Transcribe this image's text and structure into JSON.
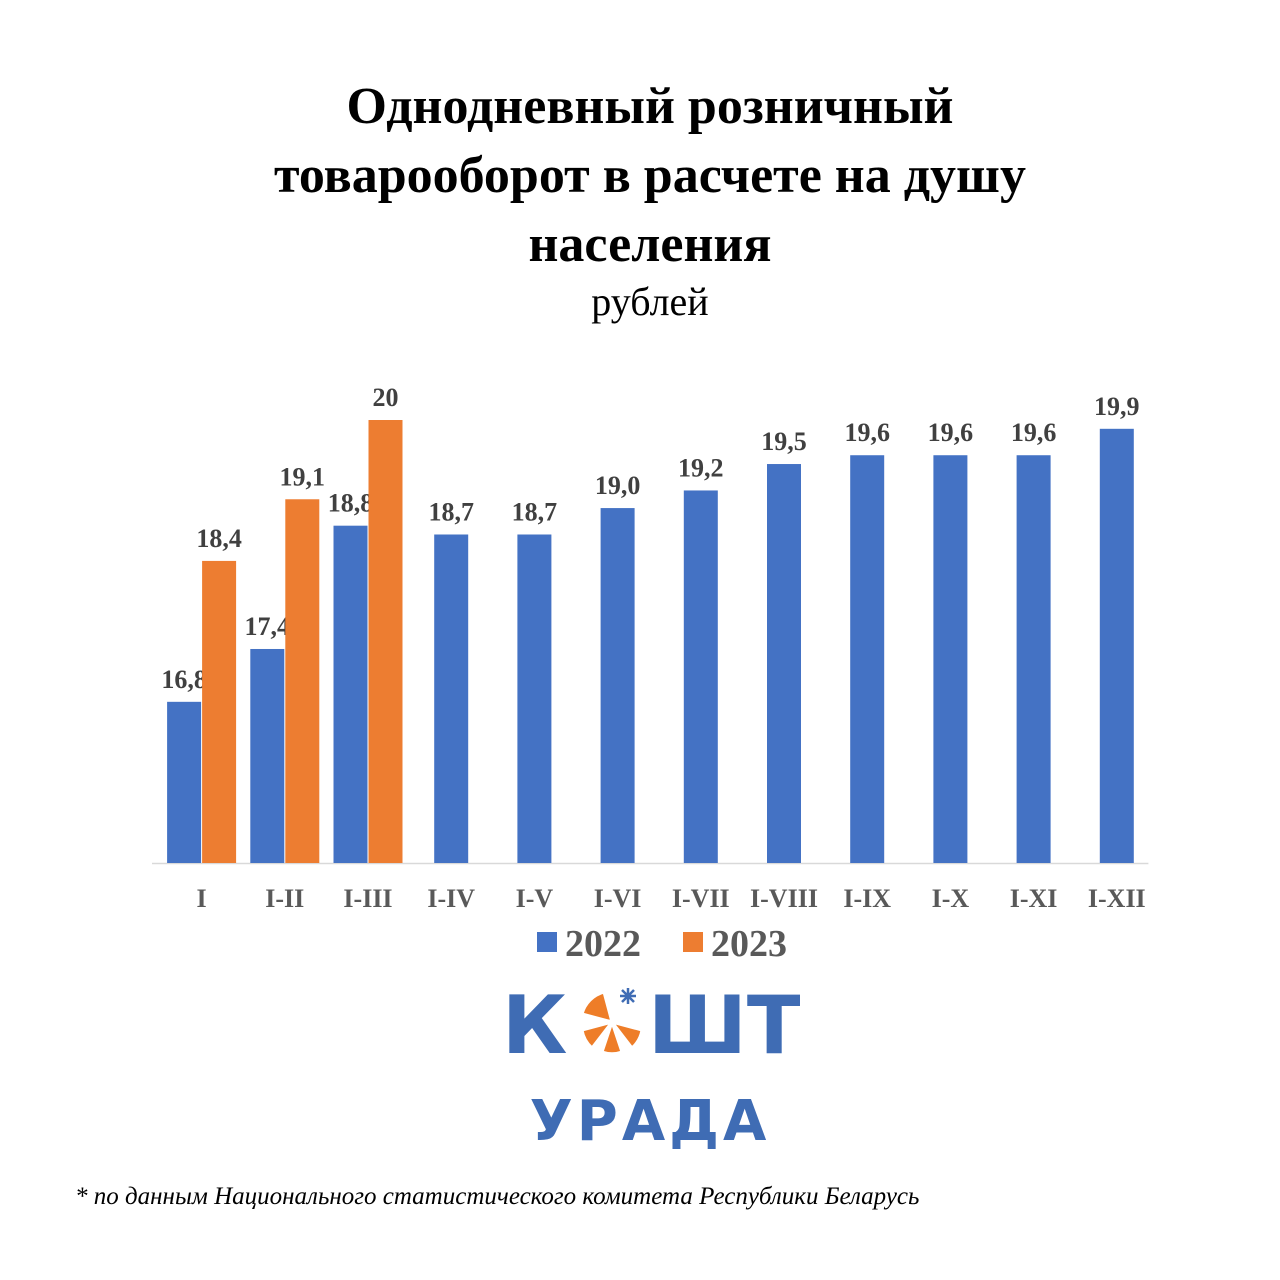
{
  "chart_data": {
    "type": "bar",
    "title_lines": [
      "Однодневный розничный",
      "товарооборот в расчете на душу",
      "населения"
    ],
    "subtitle": "рублей",
    "categories": [
      "I",
      "I-II",
      "I-III",
      "I-IV",
      "I-V",
      "I-VI",
      "I-VII",
      "I-VIII",
      "I-IX",
      "I-X",
      "I-XI",
      "I-XII"
    ],
    "series": [
      {
        "name": "2022",
        "color": "#4472C4",
        "values": [
          16.8,
          17.4,
          18.8,
          18.7,
          18.7,
          19.0,
          19.2,
          19.5,
          19.6,
          19.6,
          19.6,
          19.9
        ],
        "labels": [
          "16,8",
          "17,4",
          "18,8",
          "18,7",
          "18,7",
          "19,0",
          "19,2",
          "19,5",
          "19,6",
          "19,6",
          "19,6",
          "19,9"
        ]
      },
      {
        "name": "2023",
        "color": "#ED7D31",
        "values": [
          18.4,
          19.1,
          20.0,
          null,
          null,
          null,
          null,
          null,
          null,
          null,
          null,
          null
        ],
        "labels": [
          "18,4",
          "19,1",
          "20",
          null,
          null,
          null,
          null,
          null,
          null,
          null,
          null,
          null
        ]
      }
    ],
    "ylim": [
      14.97,
      20.0
    ],
    "grid": false,
    "legend": "bottom"
  },
  "logo": {
    "word_top_left": "К",
    "word_top_right": "ШТ",
    "word_bottom": "УРАДА",
    "blue": "#3F6CB4",
    "orange": "#EE7D28"
  },
  "footnote": "* по данным Национального статистического комитета Республики Беларусь"
}
